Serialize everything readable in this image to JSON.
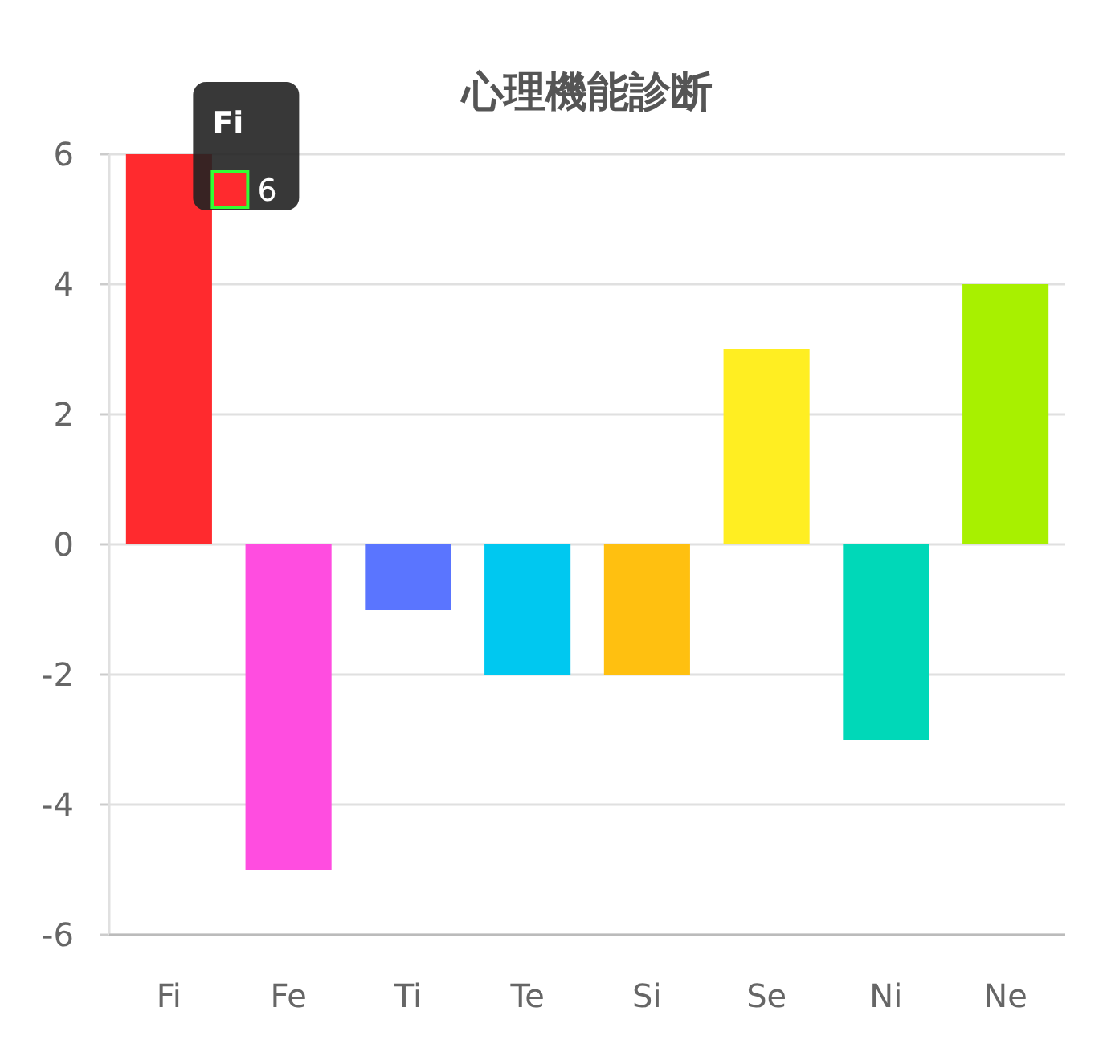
{
  "chart_data": {
    "type": "bar",
    "title": "心理機能診断",
    "categories": [
      "Fi",
      "Fe",
      "Ti",
      "Te",
      "Si",
      "Se",
      "Ni",
      "Ne"
    ],
    "values": [
      6,
      -5,
      -1,
      -2,
      -2,
      3,
      -3,
      4
    ],
    "colors": [
      "#ff2a2e",
      "#ff4de0",
      "#5a75ff",
      "#00c8f0",
      "#ffc010",
      "#ffee22",
      "#00d8b8",
      "#a8f000"
    ],
    "ylim": [
      -6,
      6
    ],
    "yticks": [
      -6,
      -4,
      -2,
      0,
      2,
      4,
      6
    ],
    "grid": "y",
    "annotations": [
      {
        "text": "Fi",
        "x": "Fi",
        "y": 6
      },
      {
        "text": "6",
        "x": "Fi",
        "y": 6
      }
    ]
  }
}
